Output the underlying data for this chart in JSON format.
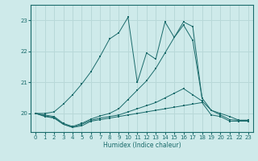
{
  "xlabel": "Humidex (Indice chaleur)",
  "xlim": [
    -0.5,
    23.5
  ],
  "ylim": [
    19.4,
    23.5
  ],
  "yticks": [
    20,
    21,
    22,
    23
  ],
  "xticks": [
    0,
    1,
    2,
    3,
    4,
    5,
    6,
    7,
    8,
    9,
    10,
    11,
    12,
    13,
    14,
    15,
    16,
    17,
    18,
    19,
    20,
    21,
    22,
    23
  ],
  "bg_color": "#ceeaea",
  "grid_color": "#b8d8d8",
  "line_color": "#1a6b6b",
  "line1_x": [
    0,
    1,
    2,
    3,
    4,
    5,
    6,
    7,
    8,
    9,
    10,
    11,
    12,
    13,
    14,
    15,
    16,
    17,
    18,
    19,
    20,
    21,
    22,
    23
  ],
  "line1_y": [
    20.0,
    19.9,
    19.85,
    19.65,
    19.55,
    19.6,
    19.75,
    19.8,
    19.85,
    19.9,
    19.95,
    20.0,
    20.05,
    20.1,
    20.15,
    20.2,
    20.25,
    20.3,
    20.35,
    19.95,
    19.9,
    19.75,
    19.75,
    19.75
  ],
  "line2_x": [
    0,
    1,
    2,
    3,
    4,
    5,
    6,
    7,
    8,
    9,
    10,
    11,
    12,
    13,
    14,
    15,
    16,
    17,
    18,
    19,
    20,
    21,
    22,
    23
  ],
  "line2_y": [
    20.0,
    19.92,
    19.87,
    19.65,
    19.55,
    19.65,
    19.78,
    19.85,
    19.9,
    19.95,
    20.05,
    20.15,
    20.25,
    20.35,
    20.5,
    20.65,
    20.8,
    20.6,
    20.4,
    20.1,
    19.95,
    19.8,
    19.78,
    19.78
  ],
  "line3_x": [
    0,
    1,
    2,
    3,
    4,
    5,
    6,
    7,
    8,
    9,
    10,
    11,
    12,
    13,
    14,
    15,
    16,
    17,
    18,
    19,
    20,
    21,
    22,
    23
  ],
  "line3_y": [
    20.0,
    19.95,
    19.9,
    19.68,
    19.58,
    19.68,
    19.82,
    19.92,
    20.0,
    20.15,
    20.45,
    20.75,
    21.05,
    21.45,
    21.95,
    22.45,
    22.95,
    22.8,
    20.5,
    20.1,
    20.0,
    19.9,
    19.78,
    19.78
  ],
  "line4_x": [
    0,
    1,
    2,
    3,
    4,
    5,
    6,
    7,
    8,
    9,
    10,
    11,
    12,
    13,
    14,
    15,
    16,
    17,
    18
  ],
  "line4_y": [
    20.0,
    20.0,
    20.05,
    20.3,
    20.6,
    20.95,
    21.35,
    21.85,
    22.4,
    22.6,
    23.1,
    21.0,
    21.95,
    21.75,
    22.95,
    22.45,
    22.85,
    22.35,
    20.5
  ]
}
